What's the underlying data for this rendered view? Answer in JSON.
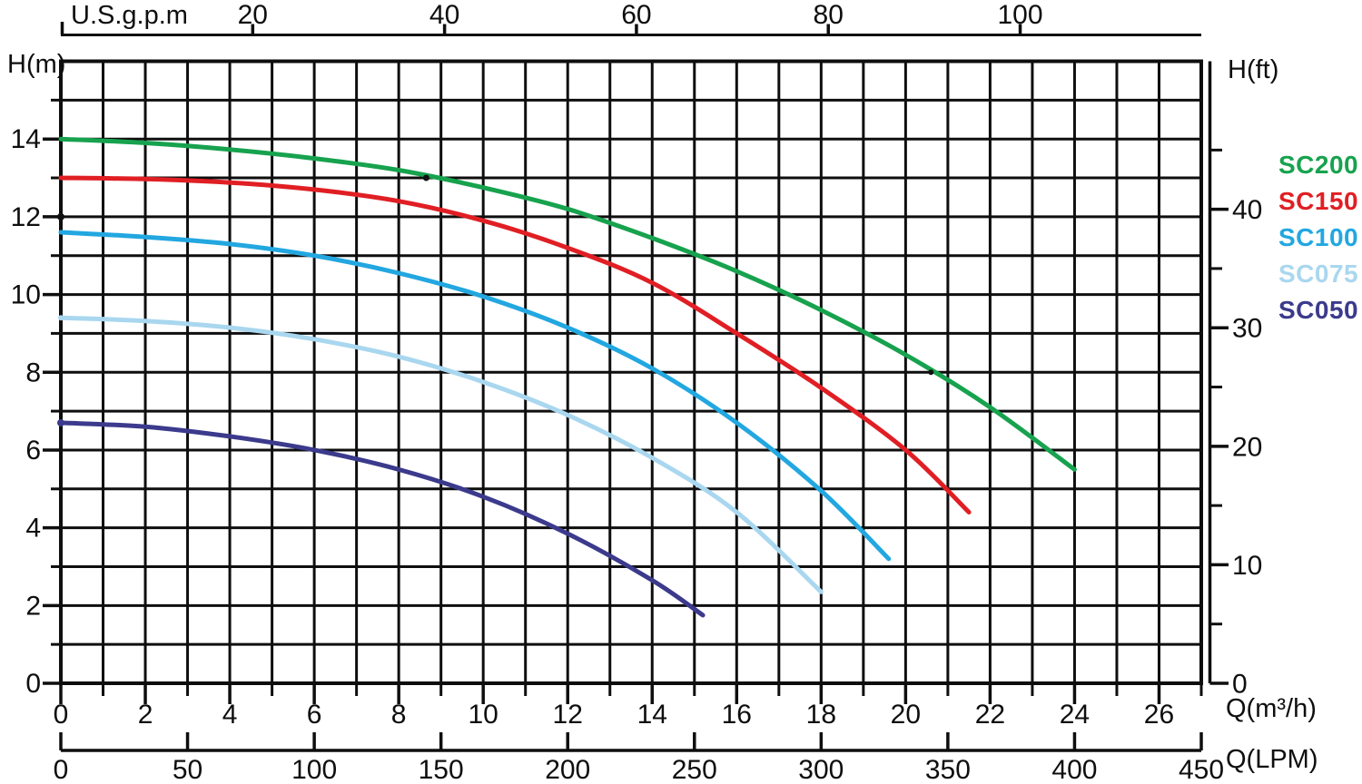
{
  "chart_data": {
    "type": "line",
    "axes": {
      "top": {
        "label": "U.S.g.p.m",
        "ticks": [
          20,
          40,
          60,
          80,
          100
        ],
        "gpm_per_m3h": 4.4029
      },
      "bottom": {
        "label": "Q(m³/h)",
        "min": 0,
        "max": 27,
        "labeled_ticks": [
          0,
          2,
          4,
          6,
          8,
          10,
          12,
          14,
          16,
          18,
          20,
          22,
          24,
          26
        ],
        "minor_tick_step": 1
      },
      "bottom_secondary": {
        "label": "Q(LPM)",
        "min": 0,
        "max": 450,
        "ticks": [
          0,
          50,
          100,
          150,
          200,
          250,
          300,
          350,
          400,
          450
        ],
        "lpm_per_m3h": 16.6667
      },
      "left": {
        "label": "H(m)",
        "min": 0,
        "max": 16,
        "labeled_ticks": [
          0,
          2,
          4,
          6,
          8,
          10,
          12,
          14
        ],
        "minor_tick_step": 1
      },
      "right": {
        "label": "H(ft)",
        "labeled_ticks": [
          0,
          10,
          20,
          30,
          40
        ],
        "minor_tick_step": 5,
        "max_tick": 45,
        "m_per_ft": 0.3048
      }
    },
    "grid": {
      "x_step": 1,
      "y_step": 1,
      "color": "#0e0e0e",
      "on": true
    },
    "legend_position": "right",
    "series": [
      {
        "name": "SC200",
        "color": "#17a24e",
        "points": [
          [
            0,
            14
          ],
          [
            2,
            13.9
          ],
          [
            4,
            13.73
          ],
          [
            6,
            13.5
          ],
          [
            8,
            13.2
          ],
          [
            10,
            12.75
          ],
          [
            12,
            12.2
          ],
          [
            14,
            11.45
          ],
          [
            16,
            10.6
          ],
          [
            18,
            9.6
          ],
          [
            20,
            8.45
          ],
          [
            22,
            7.1
          ],
          [
            24,
            5.5
          ]
        ]
      },
      {
        "name": "SC150",
        "color": "#e01f24",
        "points": [
          [
            0,
            13
          ],
          [
            2,
            12.97
          ],
          [
            4,
            12.88
          ],
          [
            6,
            12.7
          ],
          [
            8,
            12.4
          ],
          [
            10,
            11.9
          ],
          [
            12,
            11.2
          ],
          [
            14,
            10.3
          ],
          [
            16,
            9.0
          ],
          [
            18,
            7.6
          ],
          [
            20,
            6.0
          ],
          [
            21.5,
            4.4
          ]
        ]
      },
      {
        "name": "SC100",
        "color": "#22a7e0",
        "points": [
          [
            0,
            11.6
          ],
          [
            2,
            11.48
          ],
          [
            4,
            11.3
          ],
          [
            6,
            11.0
          ],
          [
            8,
            10.55
          ],
          [
            10,
            9.95
          ],
          [
            12,
            9.15
          ],
          [
            14,
            8.1
          ],
          [
            16,
            6.7
          ],
          [
            18,
            4.95
          ],
          [
            19.6,
            3.2
          ]
        ]
      },
      {
        "name": "SC075",
        "color": "#a9d7ef",
        "points": [
          [
            0,
            9.4
          ],
          [
            2,
            9.32
          ],
          [
            4,
            9.15
          ],
          [
            6,
            8.85
          ],
          [
            8,
            8.4
          ],
          [
            10,
            7.75
          ],
          [
            12,
            6.9
          ],
          [
            14,
            5.8
          ],
          [
            16,
            4.4
          ],
          [
            18,
            2.35
          ]
        ]
      },
      {
        "name": "SC050",
        "color": "#3b3a8c",
        "points": [
          [
            0,
            6.7
          ],
          [
            2,
            6.6
          ],
          [
            4,
            6.35
          ],
          [
            6,
            6.0
          ],
          [
            8,
            5.5
          ],
          [
            10,
            4.8
          ],
          [
            12,
            3.85
          ],
          [
            14,
            2.65
          ],
          [
            15.2,
            1.75
          ]
        ]
      }
    ],
    "decor_dots": [
      {
        "q": 8.65,
        "h": 13.0,
        "r": 3.5,
        "color": "#111111"
      },
      {
        "q": 20.6,
        "h": 8.0,
        "r": 3.0,
        "color": "#111111"
      },
      {
        "q": 0,
        "h": 12.0,
        "r": 4.0,
        "color": "#111111"
      },
      {
        "q": 0,
        "h": 6.7,
        "r": 4.0,
        "color": "#3b3a8c"
      },
      {
        "q": 0,
        "h": 9.4,
        "r": 3.0,
        "color": "#a9d7ef"
      }
    ]
  }
}
